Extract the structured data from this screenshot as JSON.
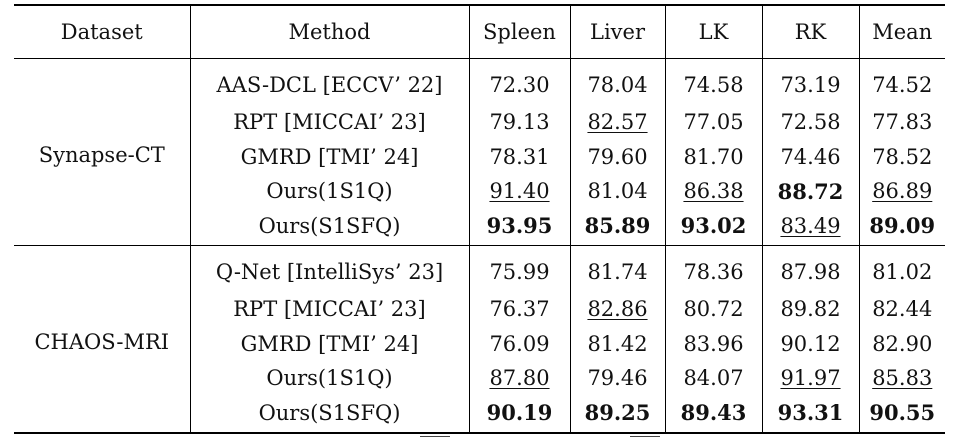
{
  "table": {
    "headers": [
      "Dataset",
      "Method",
      "Spleen",
      "Liver",
      "LK",
      "RK",
      "Mean"
    ],
    "groups": [
      {
        "dataset": "Synapse-CT",
        "rows": [
          {
            "method": "AAS-DCL [ECCV’ 22]",
            "values": [
              "72.30",
              "78.04",
              "74.58",
              "73.19",
              "74.52"
            ],
            "styles": [
              "",
              "",
              "",
              "",
              ""
            ]
          },
          {
            "method": "RPT [MICCAI’ 23]",
            "values": [
              "79.13",
              "82.57",
              "77.05",
              "72.58",
              "77.83"
            ],
            "styles": [
              "",
              "u",
              "",
              "",
              ""
            ]
          },
          {
            "method": "GMRD [TMI’ 24]",
            "values": [
              "78.31",
              "79.60",
              "81.70",
              "74.46",
              "78.52"
            ],
            "styles": [
              "",
              "",
              "",
              "",
              ""
            ]
          },
          {
            "method": "Ours(1S1Q)",
            "values": [
              "91.40",
              "81.04",
              "86.38",
              "88.72",
              "86.89"
            ],
            "styles": [
              "u",
              "",
              "u",
              "b",
              "u"
            ]
          },
          {
            "method": "Ours(S1SFQ)",
            "values": [
              "93.95",
              "85.89",
              "93.02",
              "83.49",
              "89.09"
            ],
            "styles": [
              "b",
              "b",
              "b",
              "u",
              "b"
            ]
          }
        ]
      },
      {
        "dataset": "CHAOS-MRI",
        "rows": [
          {
            "method": "Q-Net [IntelliSys’ 23]",
            "values": [
              "75.99",
              "81.74",
              "78.36",
              "87.98",
              "81.02"
            ],
            "styles": [
              "",
              "",
              "",
              "",
              ""
            ]
          },
          {
            "method": "RPT [MICCAI’ 23]",
            "values": [
              "76.37",
              "82.86",
              "80.72",
              "89.82",
              "82.44"
            ],
            "styles": [
              "",
              "u",
              "",
              "",
              ""
            ]
          },
          {
            "method": "GMRD [TMI’ 24]",
            "values": [
              "76.09",
              "81.42",
              "83.96",
              "90.12",
              "82.90"
            ],
            "styles": [
              "",
              "",
              "",
              "",
              ""
            ]
          },
          {
            "method": "Ours(1S1Q)",
            "values": [
              "87.80",
              "79.46",
              "84.07",
              "91.97",
              "85.83"
            ],
            "styles": [
              "u",
              "",
              "",
              "u",
              "u"
            ]
          },
          {
            "method": "Ours(S1SFQ)",
            "values": [
              "90.19",
              "89.25",
              "89.43",
              "93.31",
              "90.55"
            ],
            "styles": [
              "b",
              "b",
              "b",
              "b",
              "b"
            ]
          }
        ]
      }
    ]
  }
}
